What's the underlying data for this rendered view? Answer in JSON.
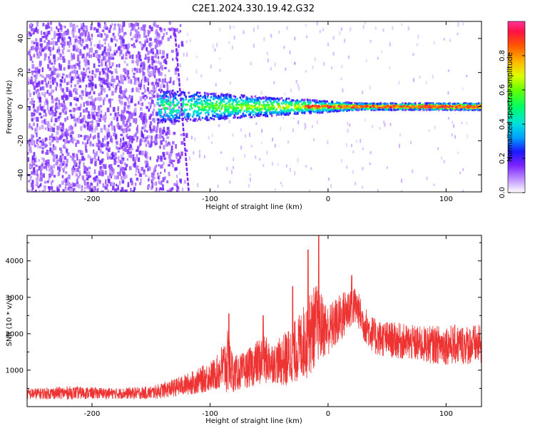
{
  "title": "C2E1.2024.330.19.42.G32",
  "chart_data": [
    {
      "type": "heatmap",
      "name": "spectrogram",
      "xlabel": "Height of straight line (km)",
      "ylabel": "Frequency (Hz)",
      "xlim": [
        -255,
        130
      ],
      "ylim": [
        -50,
        50
      ],
      "xticks": [
        -200,
        -100,
        0,
        100
      ],
      "yticks": [
        -40,
        -20,
        0,
        20,
        40
      ],
      "colorbar": {
        "label": "Normalized spectral amplitude",
        "range": [
          0.0,
          1.0
        ],
        "ticks": [
          0.0,
          0.2,
          0.4,
          0.6,
          0.8
        ],
        "tick_labels": [
          "0.0",
          "0.2",
          "0.4",
          "0.6",
          "0.8"
        ]
      },
      "features": {
        "noise_region_x": [
          -255,
          -145
        ],
        "signal_onset_x": -145,
        "center_frequency": 0,
        "band_halfwidth_at_onset": 10,
        "band_halfwidth_at_end": 2,
        "streak_line": {
          "x_start": -130,
          "x_end": -118,
          "y_start": 46,
          "y_end": -50
        }
      },
      "xtick_labels": [
        "-200",
        "-100",
        "0",
        "100"
      ],
      "ytick_labels": [
        "-40",
        "-20",
        "0",
        "20",
        "40"
      ]
    },
    {
      "type": "line",
      "name": "snr",
      "xlabel": "Height of straight line (km)",
      "ylabel": "SNR (10 * v/v)",
      "xlim": [
        -255,
        130
      ],
      "ylim": [
        0,
        4700
      ],
      "xticks": [
        -200,
        -100,
        0,
        100
      ],
      "yticks": [
        1000,
        2000,
        3000,
        4000
      ],
      "color": "#ee3333",
      "envelope": {
        "x": [
          -255,
          -220,
          -180,
          -150,
          -130,
          -110,
          -95,
          -85,
          -80,
          -70,
          -55,
          -45,
          -35,
          -25,
          -15,
          -10,
          -5,
          0,
          10,
          20,
          25,
          30,
          40,
          60,
          80,
          100,
          130
        ],
        "mean": [
          350,
          380,
          360,
          380,
          520,
          700,
          900,
          1200,
          900,
          1000,
          1300,
          1200,
          1300,
          1600,
          2000,
          2300,
          2200,
          2100,
          2400,
          2800,
          2700,
          2300,
          1900,
          1800,
          1700,
          1700,
          1700
        ],
        "spread": [
          150,
          180,
          150,
          180,
          250,
          350,
          450,
          900,
          500,
          500,
          700,
          550,
          800,
          900,
          1200,
          1100,
          900,
          700,
          700,
          600,
          500,
          500,
          500,
          500,
          500,
          550,
          550
        ]
      },
      "peaks": [
        {
          "x": -84,
          "y": 2550
        },
        {
          "x": -55,
          "y": 2500
        },
        {
          "x": -30,
          "y": 3300
        },
        {
          "x": -17,
          "y": 4300
        },
        {
          "x": -8,
          "y": 4700
        },
        {
          "x": 20,
          "y": 3600
        }
      ],
      "xtick_labels": [
        "-200",
        "-100",
        "0",
        "100"
      ],
      "ytick_labels": [
        "1000",
        "2000",
        "3000",
        "4000"
      ]
    }
  ]
}
